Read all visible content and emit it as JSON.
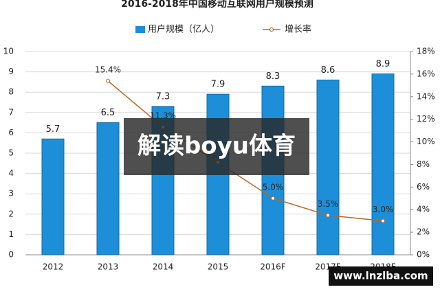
{
  "chart_data": {
    "type": "bar_line",
    "title": "2016-2018年中国移动互联网用户规模预测",
    "categories": [
      "2012",
      "2013",
      "2014",
      "2015",
      "2016F",
      "2017F",
      "2018F"
    ],
    "series": [
      {
        "name": "用户规模（亿人）",
        "type": "bar",
        "color": "#1d8fd8",
        "values": [
          5.7,
          6.5,
          7.3,
          7.9,
          8.3,
          8.6,
          8.9
        ]
      },
      {
        "name": "增长率",
        "type": "line",
        "axis": "y2",
        "color": "#c0651a",
        "values": [
          null,
          15.4,
          11.3,
          8.2,
          5.0,
          3.5,
          3.0
        ],
        "value_labels": [
          null,
          "15.4%",
          "11.3%",
          null,
          "5.0%",
          "3.5%",
          "3.0%"
        ]
      }
    ],
    "ylim": [
      0,
      10
    ],
    "yticks": [
      0,
      1,
      2,
      3,
      4,
      5,
      6,
      7,
      8,
      9,
      10
    ],
    "y2lim": [
      0,
      18
    ],
    "y2ticks": [
      {
        "value": 0,
        "label": "0%"
      },
      {
        "value": 2,
        "label": "2%"
      },
      {
        "value": 4,
        "label": "4%"
      },
      {
        "value": 6,
        "label": "6%"
      },
      {
        "value": 8,
        "label": "8%"
      },
      {
        "value": 10,
        "label": "10%"
      },
      {
        "value": 12,
        "label": "12%"
      },
      {
        "value": 14,
        "label": "14%"
      },
      {
        "value": 16,
        "label": "16%"
      },
      {
        "value": 18,
        "label": "18%"
      }
    ],
    "grid": true,
    "annotations": [
      "解读boyu体育",
      "www.lnzlba.com"
    ]
  }
}
